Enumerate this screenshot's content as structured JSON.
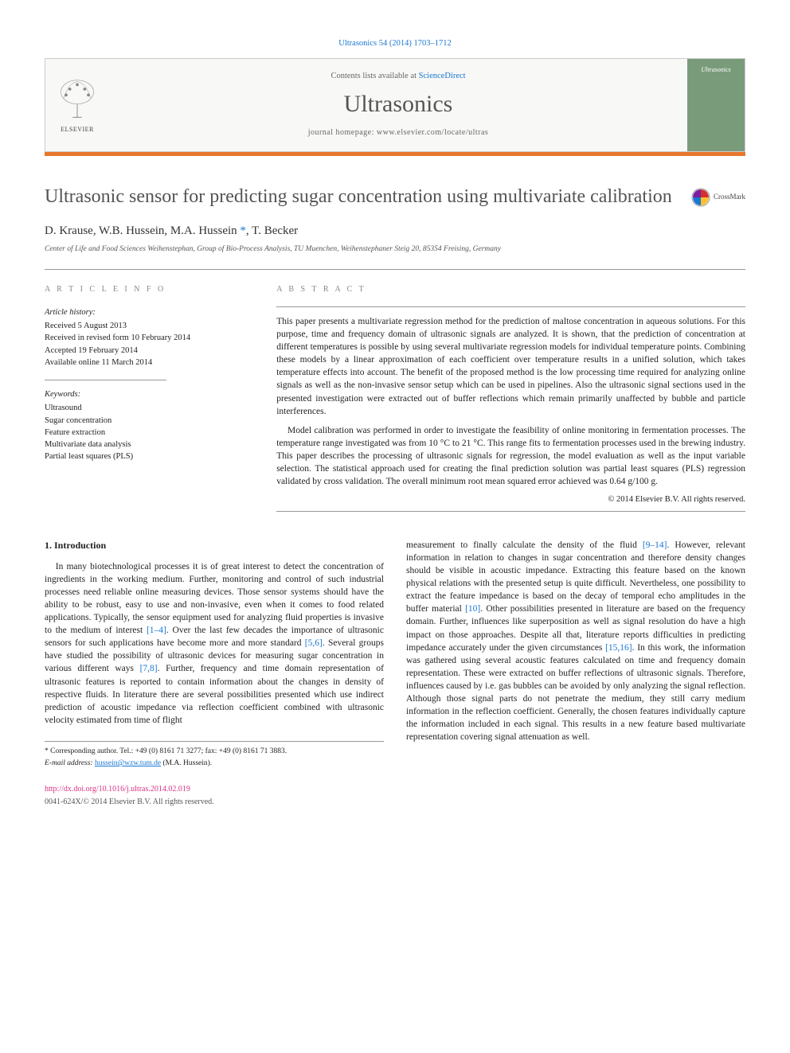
{
  "citation": "Ultrasonics 54 (2014) 1703–1712",
  "header": {
    "contents_prefix": "Contents lists available at ",
    "contents_link": "ScienceDirect",
    "journal": "Ultrasonics",
    "homepage_prefix": "journal homepage: ",
    "homepage_url": "www.elsevier.com/locate/ultras",
    "publisher": "ELSEVIER",
    "cover_title": "Ultrasonics"
  },
  "colors": {
    "accent_bar": "#e8762d",
    "link": "#1976d2",
    "doi": "#d63384",
    "cover_bg": "#7a9b7a"
  },
  "crossmark_label": "CrossMark",
  "title": "Ultrasonic sensor for predicting sugar concentration using multivariate calibration",
  "authors_html": "D. Krause, W.B. Hussein, M.A. Hussein *, T. Becker",
  "affiliation": "Center of Life and Food Sciences Weihenstephan, Group of Bio-Process Analysis, TU Muenchen, Weihenstephaner Steig 20, 85354 Freising, Germany",
  "article_info": {
    "label": "A R T I C L E   I N F O",
    "history_title": "Article history:",
    "history": [
      "Received 5 August 2013",
      "Received in revised form 10 February 2014",
      "Accepted 19 February 2014",
      "Available online 11 March 2014"
    ],
    "keywords_title": "Keywords:",
    "keywords": [
      "Ultrasound",
      "Sugar concentration",
      "Feature extraction",
      "Multivariate data analysis",
      "Partial least squares (PLS)"
    ]
  },
  "abstract": {
    "label": "A B S T R A C T",
    "paragraphs": [
      "This paper presents a multivariate regression method for the prediction of maltose concentration in aqueous solutions. For this purpose, time and frequency domain of ultrasonic signals are analyzed. It is shown, that the prediction of concentration at different temperatures is possible by using several multivariate regression models for individual temperature points. Combining these models by a linear approximation of each coefficient over temperature results in a unified solution, which takes temperature effects into account. The benefit of the proposed method is the low processing time required for analyzing online signals as well as the non-invasive sensor setup which can be used in pipelines. Also the ultrasonic signal sections used in the presented investigation were extracted out of buffer reflections which remain primarily unaffected by bubble and particle interferences.",
      "Model calibration was performed in order to investigate the feasibility of online monitoring in fermentation processes. The temperature range investigated was from 10 °C to 21 °C. This range fits to fermentation processes used in the brewing industry. This paper describes the processing of ultrasonic signals for regression, the model evaluation as well as the input variable selection. The statistical approach used for creating the final prediction solution was partial least squares (PLS) regression validated by cross validation. The overall minimum root mean squared error achieved was 0.64 g/100 g."
    ],
    "copyright": "© 2014 Elsevier B.V. All rights reserved."
  },
  "intro": {
    "heading": "1. Introduction",
    "col1": "In many biotechnological processes it is of great interest to detect the concentration of ingredients in the working medium. Further, monitoring and control of such industrial processes need reliable online measuring devices. Those sensor systems should have the ability to be robust, easy to use and non-invasive, even when it comes to food related applications. Typically, the sensor equipment used for analyzing fluid properties is invasive to the medium of interest [1–4]. Over the last few decades the importance of ultrasonic sensors for such applications have become more and more standard [5,6]. Several groups have studied the possibility of ultrasonic devices for measuring sugar concentration in various different ways [7,8]. Further, frequency and time domain representation of ultrasonic features is reported to contain information about the changes in density of respective fluids. In literature there are several possibilities presented which use indirect prediction of acoustic impedance via reflection coefficient combined with ultrasonic velocity estimated from time of flight",
    "col2": "measurement to finally calculate the density of the fluid [9–14]. However, relevant information in relation to changes in sugar concentration and therefore density changes should be visible in acoustic impedance. Extracting this feature based on the known physical relations with the presented setup is quite difficult. Nevertheless, one possibility to extract the feature impedance is based on the decay of temporal echo amplitudes in the buffer material [10]. Other possibilities presented in literature are based on the frequency domain. Further, influences like superposition as well as signal resolution do have a high impact on those approaches. Despite all that, literature reports difficulties in predicting impedance accurately under the given circumstances [15,16]. In this work, the information was gathered using several acoustic features calculated on time and frequency domain representation. These were extracted on buffer reflections of ultrasonic signals. Therefore, influences caused by i.e. gas bubbles can be avoided by only analyzing the signal reflection. Although those signal parts do not penetrate the medium, they still carry medium information in the reflection coefficient. Generally, the chosen features individually capture the information included in each signal. This results in a new feature based multivariate representation covering signal attenuation as well.",
    "refs_col1": [
      "[1–4]",
      "[5,6]",
      "[7,8]"
    ],
    "refs_col2": [
      "[9–14]",
      "[10]",
      "[15,16]"
    ]
  },
  "footnotes": {
    "corr": "* Corresponding author. Tel.: +49 (0) 8161 71 3277; fax: +49 (0) 8161 71 3883.",
    "email_label": "E-mail address: ",
    "email": "hussein@wzw.tum.de",
    "email_name": " (M.A. Hussein)."
  },
  "doi": {
    "url": "http://dx.doi.org/10.1016/j.ultras.2014.02.019",
    "line2": "0041-624X/© 2014 Elsevier B.V. All rights reserved."
  }
}
